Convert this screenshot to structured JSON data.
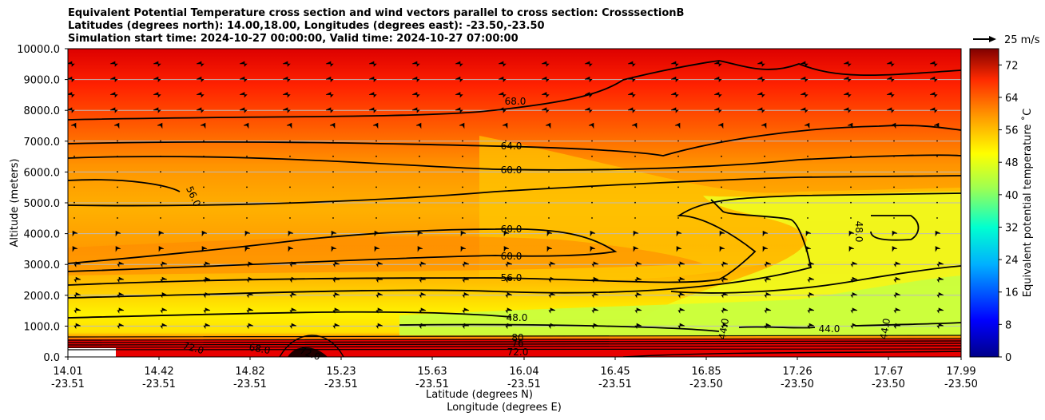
{
  "title_lines": [
    "Equivalent Potential Temperature cross section and wind vectors parallel to cross section: CrosssectionB",
    "Latitudes (degrees north): 14.00,18.00, Longitudes (degrees east): -23.50,-23.50",
    "Simulation start time: 2024-10-27 00:00:00, Valid time: 2024-10-27 07:00:00"
  ],
  "chart_data": {
    "type": "heatmap",
    "title": "Equivalent Potential Temperature cross section and wind vectors parallel to cross section: CrosssectionB",
    "xlabel": "Latitude (degrees N)",
    "xlabel2": "Longitude (degrees E)",
    "ylabel": "Altitude (meters)",
    "ylim": [
      0,
      10000
    ],
    "yticks": [
      "0.0",
      "1000.0",
      "2000.0",
      "3000.0",
      "4000.0",
      "5000.0",
      "6000.0",
      "7000.0",
      "8000.0",
      "9000.0",
      "10000.0"
    ],
    "xticks_lat": [
      "14.01",
      "14.42",
      "14.82",
      "15.23",
      "15.63",
      "16.04",
      "16.45",
      "16.85",
      "17.26",
      "17.67",
      "17.99"
    ],
    "xticks_lon": [
      "-23.51",
      "-23.51",
      "-23.51",
      "-23.51",
      "-23.51",
      "-23.51",
      "-23.51",
      "-23.50",
      "-23.50",
      "-23.50",
      "-23.50"
    ],
    "colorbar": {
      "label": "Equivalent potential temperature  ˚C",
      "range": [
        0,
        76
      ],
      "ticks": [
        "0",
        "8",
        "16",
        "24",
        "32",
        "40",
        "48",
        "56",
        "64",
        "72"
      ]
    },
    "quiver_key": "25 m/s",
    "contour_labels": [
      "68.0",
      "64.0",
      "60.0",
      "56.0",
      "60.0",
      "60.0",
      "56.0",
      "48.0",
      "44.0",
      "44.0",
      "44.0",
      "48.0",
      "72.0",
      "68.0",
      "72.0",
      "80",
      "76",
      "72.0"
    ],
    "colors": {
      "high": "#e00000",
      "mid": "#ff9900",
      "low": "#c8ff40"
    }
  }
}
